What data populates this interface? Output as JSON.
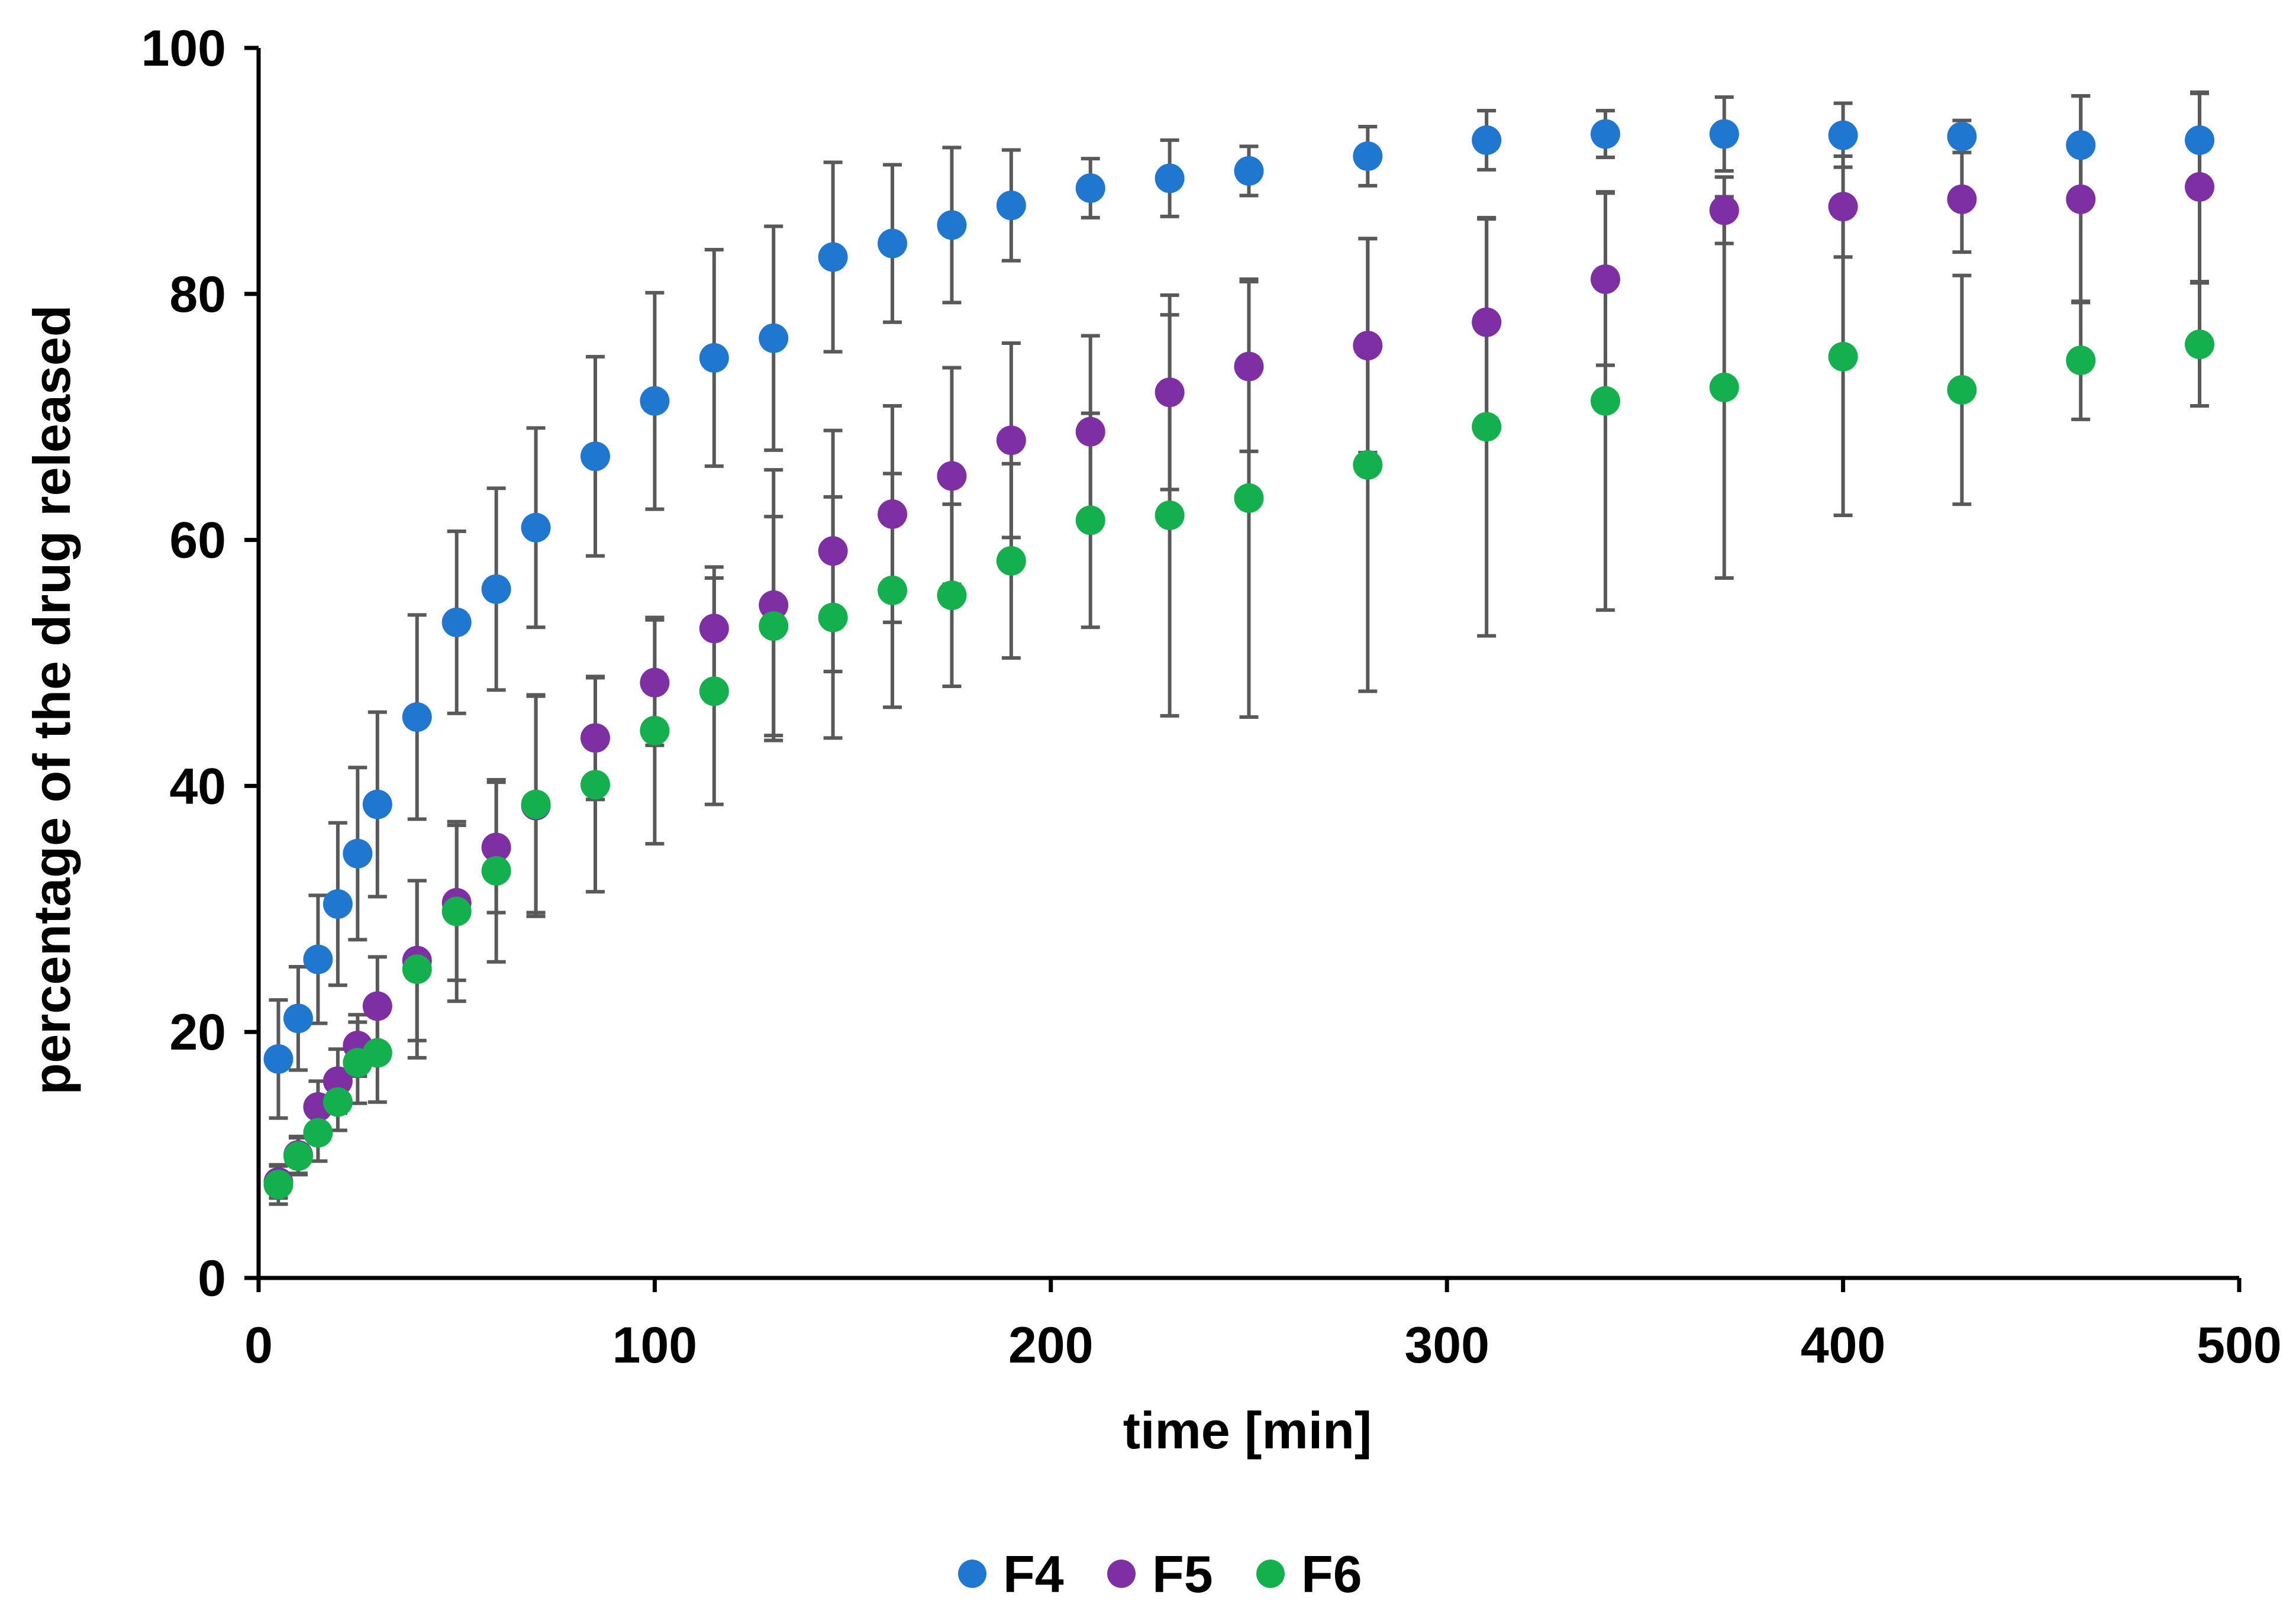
{
  "chart_data": {
    "type": "scatter",
    "title": "",
    "xlabel": "time [min]",
    "ylabel": "percentage of the drug released",
    "xlim": [
      0,
      500
    ],
    "ylim": [
      0,
      100
    ],
    "xticks": [
      0,
      100,
      200,
      300,
      400,
      500
    ],
    "yticks": [
      0,
      20,
      40,
      60,
      80,
      100
    ],
    "xtick_labels": [
      "0",
      "100",
      "200",
      "300",
      "400",
      "500"
    ],
    "ytick_labels": [
      "0",
      "20",
      "40",
      "60",
      "80",
      "100"
    ],
    "grid": false,
    "legend_position": "bottom-center",
    "x": [
      5,
      10,
      15,
      20,
      25,
      30,
      40,
      50,
      60,
      70,
      85,
      100,
      115,
      130,
      145,
      160,
      175,
      190,
      210,
      230,
      250,
      280,
      310,
      340,
      370,
      400,
      430,
      460,
      490
    ],
    "series": [
      {
        "name": "F4",
        "color": "#1F77D0",
        "values": [
          17.8,
          21.1,
          25.9,
          30.4,
          34.5,
          38.5,
          45.6,
          53.3,
          56.0,
          61.0,
          66.8,
          71.3,
          74.8,
          76.4,
          83.0,
          84.1,
          85.6,
          87.2,
          88.6,
          89.4,
          90.0,
          91.2,
          92.5,
          93.0,
          93.0,
          92.9,
          92.8,
          92.1,
          92.5
        ],
        "errors": [
          4.8,
          4.2,
          5.2,
          6.6,
          7.0,
          7.5,
          8.3,
          7.4,
          8.2,
          8.1,
          8.1,
          8.8,
          8.8,
          9.1,
          7.7,
          6.4,
          6.3,
          4.5,
          2.4,
          3.1,
          2.0,
          2.4,
          2.4,
          1.9,
          3.0,
          2.6,
          1.3,
          4.0,
          3.8
        ]
      },
      {
        "name": "F5",
        "color": "#7E2FA4",
        "values": [
          7.8,
          10.0,
          13.9,
          16.0,
          18.9,
          22.1,
          25.8,
          30.5,
          35.0,
          38.4,
          43.9,
          48.4,
          52.8,
          54.7,
          59.1,
          62.1,
          65.2,
          68.1,
          68.8,
          72.0,
          74.1,
          75.8,
          77.7,
          81.2,
          86.8,
          87.1,
          87.7,
          87.7,
          88.7
        ],
        "errors": [
          1.3,
          1.5,
          2.1,
          2.6,
          2.5,
          4.0,
          6.5,
          6.3,
          5.3,
          9.0,
          5.0,
          5.1,
          5.0,
          11.0,
          9.8,
          8.8,
          8.8,
          7.9,
          7.8,
          7.9,
          6.9,
          8.7,
          8.4,
          7.0,
          2.7,
          4.1,
          4.3,
          8.4,
          7.7
        ]
      },
      {
        "name": "F6",
        "color": "#14B04E",
        "values": [
          7.6,
          9.9,
          11.8,
          14.3,
          17.5,
          18.3,
          25.1,
          29.8,
          33.1,
          38.5,
          40.1,
          44.5,
          47.7,
          53.0,
          53.7,
          55.9,
          55.5,
          58.3,
          61.6,
          62.0,
          63.4,
          66.1,
          69.2,
          71.3,
          72.4,
          74.9,
          72.2,
          74.6,
          75.9
        ],
        "errors": [
          1.6,
          1.5,
          2.3,
          2.3,
          3.3,
          4.0,
          7.2,
          7.3,
          7.4,
          8.8,
          8.7,
          9.2,
          9.2,
          8.9,
          9.8,
          9.5,
          7.4,
          7.9,
          8.7,
          16.3,
          17.8,
          18.4,
          17.0,
          17.0,
          15.5,
          12.9,
          9.3,
          4.8,
          5.0
        ]
      }
    ]
  }
}
